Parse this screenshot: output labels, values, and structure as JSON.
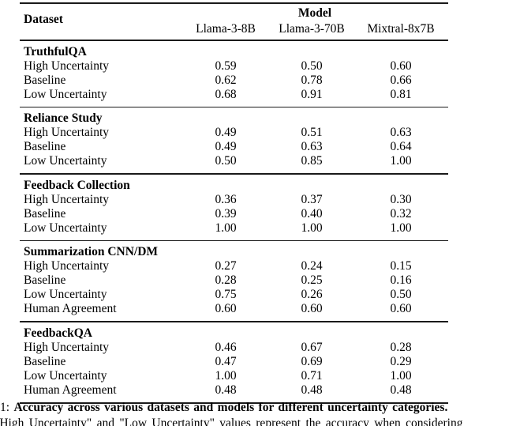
{
  "table": {
    "header": {
      "dataset_label": "Dataset",
      "model_label": "Model",
      "models": [
        "Llama-3-8B",
        "Llama-3-70B",
        "Mixtral-8x7B"
      ]
    },
    "sections": [
      {
        "name": "TruthfulQA",
        "rows": [
          {
            "label": "High Uncertainty",
            "values": [
              "0.59",
              "0.50",
              "0.60"
            ]
          },
          {
            "label": "Baseline",
            "values": [
              "0.62",
              "0.78",
              "0.66"
            ]
          },
          {
            "label": "Low Uncertainty",
            "values": [
              "0.68",
              "0.91",
              "0.81"
            ]
          }
        ]
      },
      {
        "name": "Reliance Study",
        "rows": [
          {
            "label": "High Uncertainty",
            "values": [
              "0.49",
              "0.51",
              "0.63"
            ]
          },
          {
            "label": "Baseline",
            "values": [
              "0.49",
              "0.63",
              "0.64"
            ]
          },
          {
            "label": "Low Uncertainty",
            "values": [
              "0.50",
              "0.85",
              "1.00"
            ]
          }
        ]
      },
      {
        "name": "Feedback Collection",
        "rows": [
          {
            "label": "High Uncertainty",
            "values": [
              "0.36",
              "0.37",
              "0.30"
            ]
          },
          {
            "label": "Baseline",
            "values": [
              "0.39",
              "0.40",
              "0.32"
            ]
          },
          {
            "label": "Low Uncertainty",
            "values": [
              "1.00",
              "1.00",
              "1.00"
            ]
          }
        ]
      },
      {
        "name": "Summarization CNN/DM",
        "rows": [
          {
            "label": "High Uncertainty",
            "values": [
              "0.27",
              "0.24",
              "0.15"
            ]
          },
          {
            "label": "Baseline",
            "values": [
              "0.28",
              "0.25",
              "0.16"
            ]
          },
          {
            "label": "Low Uncertainty",
            "values": [
              "0.75",
              "0.26",
              "0.50"
            ]
          },
          {
            "label": "Human Agreement",
            "values": [
              "0.60",
              "0.60",
              "0.60"
            ]
          }
        ]
      },
      {
        "name": "FeedbackQA",
        "rows": [
          {
            "label": "High Uncertainty",
            "values": [
              "0.46",
              "0.67",
              "0.28"
            ]
          },
          {
            "label": "Baseline",
            "values": [
              "0.47",
              "0.69",
              "0.29"
            ]
          },
          {
            "label": "Low Uncertainty",
            "values": [
              "1.00",
              "0.71",
              "1.00"
            ]
          },
          {
            "label": "Human Agreement",
            "values": [
              "0.48",
              "0.48",
              "0.48"
            ]
          }
        ]
      }
    ]
  },
  "caption": {
    "number_prefix": "1:",
    "title_bold": "Accuracy across various datasets and models for different uncertainty categories.",
    "body_line": "\"High Uncertainty\" and \"Low Uncertainty\" values represent the accuracy when considering"
  },
  "chart_data": {
    "type": "table",
    "title": "Accuracy across various datasets and models for different uncertainty categories",
    "columns": [
      "Llama-3-8B",
      "Llama-3-70B",
      "Mixtral-8x7B"
    ],
    "groups": [
      {
        "dataset": "TruthfulQA",
        "rows": {
          "High Uncertainty": [
            0.59,
            0.5,
            0.6
          ],
          "Baseline": [
            0.62,
            0.78,
            0.66
          ],
          "Low Uncertainty": [
            0.68,
            0.91,
            0.81
          ]
        }
      },
      {
        "dataset": "Reliance Study",
        "rows": {
          "High Uncertainty": [
            0.49,
            0.51,
            0.63
          ],
          "Baseline": [
            0.49,
            0.63,
            0.64
          ],
          "Low Uncertainty": [
            0.5,
            0.85,
            1.0
          ]
        }
      },
      {
        "dataset": "Feedback Collection",
        "rows": {
          "High Uncertainty": [
            0.36,
            0.37,
            0.3
          ],
          "Baseline": [
            0.39,
            0.4,
            0.32
          ],
          "Low Uncertainty": [
            1.0,
            1.0,
            1.0
          ]
        }
      },
      {
        "dataset": "Summarization CNN/DM",
        "rows": {
          "High Uncertainty": [
            0.27,
            0.24,
            0.15
          ],
          "Baseline": [
            0.28,
            0.25,
            0.16
          ],
          "Low Uncertainty": [
            0.75,
            0.26,
            0.5
          ],
          "Human Agreement": [
            0.6,
            0.6,
            0.6
          ]
        }
      },
      {
        "dataset": "FeedbackQA",
        "rows": {
          "High Uncertainty": [
            0.46,
            0.67,
            0.28
          ],
          "Baseline": [
            0.47,
            0.69,
            0.29
          ],
          "Low Uncertainty": [
            1.0,
            0.71,
            1.0
          ],
          "Human Agreement": [
            0.48,
            0.48,
            0.48
          ]
        }
      }
    ]
  }
}
